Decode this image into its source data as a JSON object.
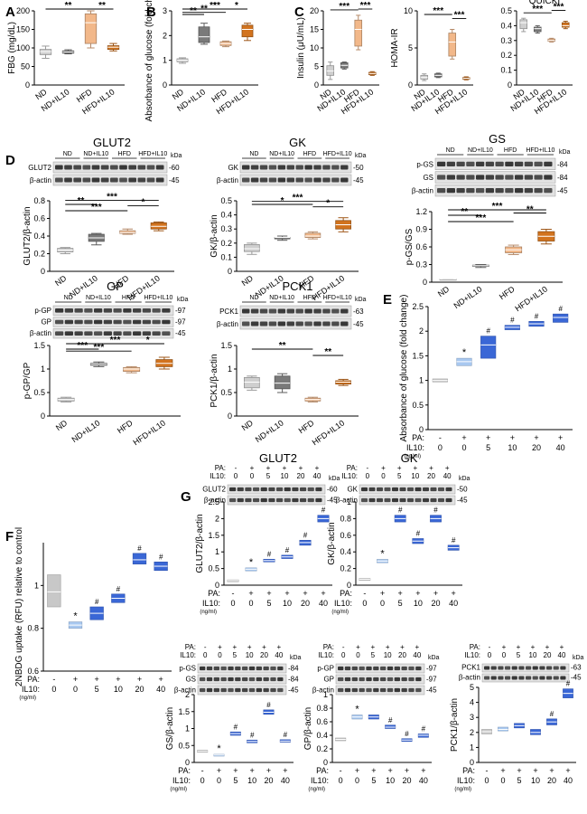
{
  "colors": {
    "ND": "#cfcfcf",
    "ND+IL10": "#7a7a7a",
    "HFD": "#f2b88a",
    "HFD+IL10": "#d2731e",
    "ctrl": "#c8c8c8",
    "pa0": "#a8c8f0",
    "pa": "#3a67d6"
  },
  "groups": [
    "ND",
    "ND+IL10",
    "HFD",
    "HFD+IL10"
  ],
  "labels": {
    "pa": "PA:",
    "il10": "IL10:",
    "ngml": "(ng/ml)",
    "kda": "kDa",
    "pa_signs": [
      "-",
      "+",
      "+",
      "+",
      "+",
      "+"
    ],
    "doses": [
      "0",
      "0",
      "5",
      "10",
      "20",
      "40"
    ],
    "actin": "β-actin",
    "pvals": {
      "p2": "**",
      "p3": "***",
      "p1": "*"
    },
    "hash": "#",
    "star": "*"
  },
  "panel_letters": [
    "A",
    "B",
    "C",
    "D",
    "E",
    "F",
    "G"
  ],
  "chart_data": [
    {
      "id": "A",
      "type": "box",
      "title": "",
      "ylabel": "FBG (mg/dL)",
      "ylim": [
        0,
        200
      ],
      "yticks": [
        0,
        50,
        100,
        150,
        200
      ],
      "categories": [
        "ND",
        "ND+IL10",
        "HFD",
        "HFD+IL10"
      ],
      "boxes": [
        [
          72,
          82,
          90,
          96,
          105
        ],
        [
          84,
          86,
          89,
          92,
          95
        ],
        [
          100,
          112,
          168,
          192,
          200
        ],
        [
          92,
          96,
          102,
          106,
          112
        ]
      ],
      "sig": [
        {
          "a": 0,
          "b": 2,
          "t": "**"
        },
        {
          "a": 2,
          "b": 3,
          "t": "**"
        }
      ]
    },
    {
      "id": "B",
      "type": "box",
      "title": "",
      "ylabel": "Absorbance of glucose (fold change)",
      "ylim": [
        0,
        3
      ],
      "yticks": [
        0,
        1,
        2,
        3
      ],
      "categories": [
        "ND",
        "ND+IL10",
        "HFD",
        "HFD+IL10"
      ],
      "boxes": [
        [
          0.88,
          0.94,
          1.0,
          1.06,
          1.1
        ],
        [
          1.65,
          1.72,
          1.95,
          2.35,
          2.5
        ],
        [
          1.55,
          1.6,
          1.68,
          1.75,
          1.78
        ],
        [
          1.8,
          1.95,
          2.25,
          2.42,
          2.5
        ]
      ],
      "sig": [
        {
          "a": 0,
          "b": 1,
          "t": "**"
        },
        {
          "a": 0,
          "b": 2,
          "t": "**"
        },
        {
          "a": 1,
          "b": 2,
          "t": "*"
        },
        {
          "a": 2,
          "b": 3,
          "t": "*"
        },
        {
          "a": 0,
          "b": 3,
          "t": "***"
        }
      ]
    },
    {
      "id": "C1",
      "type": "box",
      "title": "",
      "ylabel": "Insulin (μU/mL)",
      "ylim": [
        0,
        20
      ],
      "yticks": [
        0,
        5,
        10,
        15,
        20
      ],
      "categories": [
        "ND",
        "ND+IL10",
        "HFD",
        "HFD+IL10"
      ],
      "boxes": [
        [
          1.5,
          2.6,
          3.8,
          5.2,
          6.2
        ],
        [
          4.3,
          4.6,
          5.3,
          6.0,
          6.2
        ],
        [
          9.5,
          10.5,
          15.0,
          17.5,
          18.8
        ],
        [
          2.6,
          2.8,
          3.1,
          3.4,
          3.6
        ]
      ],
      "sig": [
        {
          "a": 0,
          "b": 2,
          "t": "***"
        },
        {
          "a": 2,
          "b": 3,
          "t": "***"
        }
      ]
    },
    {
      "id": "C2",
      "type": "box",
      "title": "",
      "ylabel": "HOMA-IR",
      "ylim": [
        0,
        10
      ],
      "yticks": [
        0,
        5,
        10
      ],
      "categories": [
        "ND",
        "ND+IL10",
        "HFD",
        "HFD+IL10"
      ],
      "boxes": [
        [
          0.6,
          0.8,
          1.0,
          1.3,
          1.5
        ],
        [
          1.0,
          1.1,
          1.3,
          1.5,
          1.6
        ],
        [
          3.5,
          3.9,
          5.8,
          7.0,
          7.5
        ],
        [
          0.7,
          0.8,
          0.9,
          1.0,
          1.1
        ]
      ],
      "sig": [
        {
          "a": 0,
          "b": 2,
          "t": "***"
        },
        {
          "a": 2,
          "b": 3,
          "t": "***"
        }
      ]
    },
    {
      "id": "C3",
      "type": "box",
      "title": "QUICKI",
      "ylabel": "",
      "ylim": [
        0,
        0.5
      ],
      "yticks": [
        0,
        0.1,
        0.2,
        0.3,
        0.4,
        0.5
      ],
      "categories": [
        "ND",
        "ND+IL10",
        "HFD",
        "HFD+IL10"
      ],
      "boxes": [
        [
          0.36,
          0.38,
          0.42,
          0.44,
          0.45
        ],
        [
          0.35,
          0.36,
          0.38,
          0.39,
          0.4
        ],
        [
          0.29,
          0.295,
          0.3,
          0.31,
          0.315
        ],
        [
          0.38,
          0.39,
          0.4,
          0.42,
          0.43
        ]
      ],
      "sig": [
        {
          "a": 0,
          "b": 2,
          "t": "***"
        },
        {
          "a": 2,
          "b": 3,
          "t": "***"
        }
      ]
    },
    {
      "id": "D1",
      "type": "box",
      "title": "GLUT2",
      "ylabel": "GLUT2/β-actin",
      "ylim": [
        0,
        0.8
      ],
      "yticks": [
        0,
        0.2,
        0.4,
        0.6,
        0.8
      ],
      "categories": [
        "ND",
        "ND+IL10",
        "HFD",
        "HFD+IL10"
      ],
      "boxes": [
        [
          0.2,
          0.22,
          0.24,
          0.26,
          0.27
        ],
        [
          0.3,
          0.34,
          0.38,
          0.42,
          0.43
        ],
        [
          0.42,
          0.43,
          0.44,
          0.46,
          0.48
        ],
        [
          0.46,
          0.48,
          0.51,
          0.55,
          0.56
        ]
      ],
      "sig": [
        {
          "a": 0,
          "b": 1,
          "t": "**"
        },
        {
          "a": 0,
          "b": 2,
          "t": "***"
        },
        {
          "a": 2,
          "b": 3,
          "t": "*"
        },
        {
          "a": 0,
          "b": 3,
          "t": "***"
        }
      ],
      "blot_rows": [
        {
          "label": "GLUT2",
          "kda": "60"
        },
        {
          "label": "β-actin",
          "kda": "45"
        }
      ]
    },
    {
      "id": "D2",
      "type": "box",
      "title": "GK",
      "ylabel": "GK/β-actin",
      "ylim": [
        0,
        0.5
      ],
      "yticks": [
        0,
        0.1,
        0.2,
        0.3,
        0.4,
        0.5
      ],
      "categories": [
        "ND",
        "ND+IL10",
        "HFD",
        "HFD+IL10"
      ],
      "boxes": [
        [
          0.12,
          0.14,
          0.16,
          0.19,
          0.2
        ],
        [
          0.22,
          0.23,
          0.24,
          0.24,
          0.25
        ],
        [
          0.23,
          0.24,
          0.25,
          0.27,
          0.28
        ],
        [
          0.28,
          0.3,
          0.33,
          0.36,
          0.38
        ]
      ],
      "sig": [
        {
          "a": 0,
          "b": 2,
          "t": "*"
        },
        {
          "a": 2,
          "b": 3,
          "t": "*"
        },
        {
          "a": 0,
          "b": 3,
          "t": "***"
        }
      ],
      "blot_rows": [
        {
          "label": "GK",
          "kda": "50"
        },
        {
          "label": "β-actin",
          "kda": "45"
        }
      ]
    },
    {
      "id": "D3",
      "type": "box",
      "title": "GS",
      "ylabel": "p-GS/GS",
      "ylim": [
        0,
        1.2
      ],
      "yticks": [
        0,
        0.3,
        0.6,
        0.9,
        1.2
      ],
      "categories": [
        "ND",
        "ND+IL10",
        "HFD",
        "HFD+IL10"
      ],
      "boxes": [
        [
          0.05,
          0.05,
          0.05,
          0.05,
          0.05
        ],
        [
          0.25,
          0.27,
          0.28,
          0.29,
          0.3
        ],
        [
          0.47,
          0.5,
          0.55,
          0.6,
          0.63
        ],
        [
          0.65,
          0.7,
          0.78,
          0.86,
          0.9
        ]
      ],
      "sig": [
        {
          "a": 0,
          "b": 1,
          "t": "**"
        },
        {
          "a": 0,
          "b": 2,
          "t": "***"
        },
        {
          "a": 2,
          "b": 3,
          "t": "**"
        },
        {
          "a": 0,
          "b": 3,
          "t": "***"
        }
      ],
      "blot_rows": [
        {
          "label": "p-GS",
          "kda": "84"
        },
        {
          "label": "GS",
          "kda": "84"
        },
        {
          "label": "β-actin",
          "kda": "45"
        }
      ]
    },
    {
      "id": "D4",
      "type": "box",
      "title": "GP",
      "ylabel": "p-GP/GP",
      "ylim": [
        0,
        1.5
      ],
      "yticks": [
        0,
        0.5,
        1.0,
        1.5
      ],
      "categories": [
        "ND",
        "ND+IL10",
        "HFD",
        "HFD+IL10"
      ],
      "boxes": [
        [
          0.3,
          0.32,
          0.35,
          0.38,
          0.4
        ],
        [
          1.05,
          1.08,
          1.1,
          1.12,
          1.15
        ],
        [
          0.92,
          0.95,
          1.0,
          1.03,
          1.05
        ],
        [
          1.0,
          1.05,
          1.12,
          1.2,
          1.25
        ]
      ],
      "sig": [
        {
          "a": 0,
          "b": 1,
          "t": "***"
        },
        {
          "a": 0,
          "b": 2,
          "t": "***"
        },
        {
          "a": 2,
          "b": 3,
          "t": "*"
        },
        {
          "a": 0,
          "b": 3,
          "t": "***"
        }
      ],
      "blot_rows": [
        {
          "label": "p-GP",
          "kda": "97"
        },
        {
          "label": "GP",
          "kda": "97"
        },
        {
          "label": "β-actin",
          "kda": "45"
        }
      ]
    },
    {
      "id": "D5",
      "type": "box",
      "title": "PCK1",
      "ylabel": "PCK1/β-actin",
      "ylim": [
        0,
        1.5
      ],
      "yticks": [
        0,
        0.5,
        1.0,
        1.5
      ],
      "categories": [
        "ND",
        "ND+IL10",
        "HFD",
        "HFD+IL10"
      ],
      "boxes": [
        [
          0.55,
          0.6,
          0.72,
          0.82,
          0.85
        ],
        [
          0.5,
          0.58,
          0.7,
          0.85,
          0.9
        ],
        [
          0.3,
          0.32,
          0.35,
          0.38,
          0.4
        ],
        [
          0.65,
          0.68,
          0.72,
          0.75,
          0.78
        ]
      ],
      "sig": [
        {
          "a": 0,
          "b": 2,
          "t": "**"
        },
        {
          "a": 2,
          "b": 3,
          "t": "**"
        }
      ],
      "blot_rows": [
        {
          "label": "PCK1",
          "kda": "63"
        },
        {
          "label": "β-actin",
          "kda": "45"
        }
      ]
    },
    {
      "id": "E",
      "type": "floating_bar",
      "ylabel": "Absorbance of glucose (fold change)",
      "ylim": [
        0,
        2.5
      ],
      "yticks": [
        0,
        0.5,
        1.0,
        1.5,
        2.0,
        2.5
      ],
      "bars": [
        [
          0.97,
          1.03,
          1.0
        ],
        [
          1.3,
          1.45,
          1.38
        ],
        [
          1.45,
          1.9,
          1.72
        ],
        [
          2.03,
          2.12,
          2.08
        ],
        [
          2.1,
          2.2,
          2.15
        ],
        [
          2.18,
          2.35,
          2.28
        ]
      ],
      "marks": [
        "",
        "*",
        "#",
        "#",
        "#",
        "#"
      ]
    },
    {
      "id": "F",
      "type": "floating_bar",
      "ylabel": "2NBDG uptake (RFU) relative to control",
      "ylim": [
        0.6,
        1.2
      ],
      "yticks": [
        0.6,
        0.8,
        1.0
      ],
      "bars": [
        [
          0.9,
          1.05,
          0.97
        ],
        [
          0.8,
          0.83,
          0.815
        ],
        [
          0.84,
          0.9,
          0.87
        ],
        [
          0.92,
          0.96,
          0.94
        ],
        [
          1.1,
          1.15,
          1.12
        ],
        [
          1.07,
          1.11,
          1.09
        ]
      ],
      "marks": [
        "",
        "*",
        "#",
        "#",
        "#",
        "#"
      ]
    },
    {
      "id": "G1",
      "type": "floating_bar",
      "title": "GLUT2",
      "ylabel": "GLUT2/β-actin",
      "ylim": [
        0,
        2.5
      ],
      "yticks": [
        0,
        0.5,
        1.0,
        1.5,
        2.0,
        2.5
      ],
      "bars": [
        [
          0.12,
          0.16,
          0.14
        ],
        [
          0.43,
          0.52,
          0.48
        ],
        [
          0.7,
          0.78,
          0.74
        ],
        [
          0.8,
          0.9,
          0.85
        ],
        [
          1.2,
          1.35,
          1.28
        ],
        [
          1.9,
          2.1,
          2.0
        ]
      ],
      "marks": [
        "",
        "*",
        "#",
        "#",
        "#",
        "#"
      ],
      "blot_rows": [
        {
          "label": "GLUT2",
          "kda": "60"
        },
        {
          "label": "β-actin",
          "kda": "45"
        }
      ]
    },
    {
      "id": "G2",
      "type": "floating_bar",
      "title": "GK",
      "ylabel": "GK/β-actin",
      "ylim": [
        0,
        1.0
      ],
      "yticks": [
        0,
        0.2,
        0.4,
        0.6,
        0.8,
        1.0
      ],
      "bars": [
        [
          0.06,
          0.08,
          0.07
        ],
        [
          0.27,
          0.31,
          0.29
        ],
        [
          0.76,
          0.84,
          0.8
        ],
        [
          0.5,
          0.56,
          0.53
        ],
        [
          0.76,
          0.84,
          0.8
        ],
        [
          0.42,
          0.48,
          0.45
        ]
      ],
      "marks": [
        "",
        "*",
        "#",
        "#",
        "#",
        "#"
      ],
      "blot_rows": [
        {
          "label": "GK",
          "kda": "50"
        },
        {
          "label": "β-actin",
          "kda": "45"
        }
      ]
    },
    {
      "id": "G3",
      "type": "floating_bar",
      "title": "",
      "ylabel": "GS/β-actin",
      "ylim": [
        0,
        2.0
      ],
      "yticks": [
        0,
        0.5,
        1.0,
        1.5,
        2.0
      ],
      "bars": [
        [
          0.3,
          0.36,
          0.33
        ],
        [
          0.2,
          0.24,
          0.22
        ],
        [
          0.8,
          0.9,
          0.85
        ],
        [
          0.58,
          0.66,
          0.62
        ],
        [
          1.42,
          1.55,
          1.48
        ],
        [
          0.6,
          0.67,
          0.63
        ]
      ],
      "marks": [
        "",
        "*",
        "#",
        "#",
        "#",
        "#"
      ],
      "blot_rows": [
        {
          "label": "p-GS",
          "kda": "84"
        },
        {
          "label": "GS",
          "kda": "84"
        },
        {
          "label": "β-actin",
          "kda": "45"
        }
      ]
    },
    {
      "id": "G4",
      "type": "floating_bar",
      "title": "",
      "ylabel": "GP/β-actin",
      "ylim": [
        0,
        1.0
      ],
      "yticks": [
        0,
        0.2,
        0.4,
        0.6,
        0.8,
        1.0
      ],
      "bars": [
        [
          0.32,
          0.36,
          0.34
        ],
        [
          0.64,
          0.7,
          0.67
        ],
        [
          0.64,
          0.7,
          0.67
        ],
        [
          0.5,
          0.55,
          0.52
        ],
        [
          0.31,
          0.35,
          0.33
        ],
        [
          0.37,
          0.42,
          0.4
        ]
      ],
      "marks": [
        "",
        "*",
        "",
        "#",
        "#",
        "#"
      ],
      "blot_rows": [
        {
          "label": "p-GP",
          "kda": "97"
        },
        {
          "label": "GP",
          "kda": "97"
        },
        {
          "label": "β-actin",
          "kda": "45"
        }
      ]
    },
    {
      "id": "G5",
      "type": "floating_bar",
      "title": "",
      "ylabel": "PCK1/β-actin",
      "ylim": [
        0,
        5
      ],
      "yticks": [
        0,
        1,
        2,
        3,
        4,
        5
      ],
      "bars": [
        [
          1.9,
          2.2,
          2.05
        ],
        [
          2.1,
          2.35,
          2.2
        ],
        [
          2.3,
          2.6,
          2.45
        ],
        [
          1.85,
          2.2,
          2.0
        ],
        [
          2.5,
          2.9,
          2.7
        ],
        [
          4.3,
          4.9,
          4.6
        ]
      ],
      "marks": [
        "",
        "",
        "",
        "",
        "#",
        "#"
      ],
      "blot_rows": [
        {
          "label": "PCK1",
          "kda": "63"
        },
        {
          "label": "β-actin",
          "kda": "45"
        }
      ]
    }
  ]
}
